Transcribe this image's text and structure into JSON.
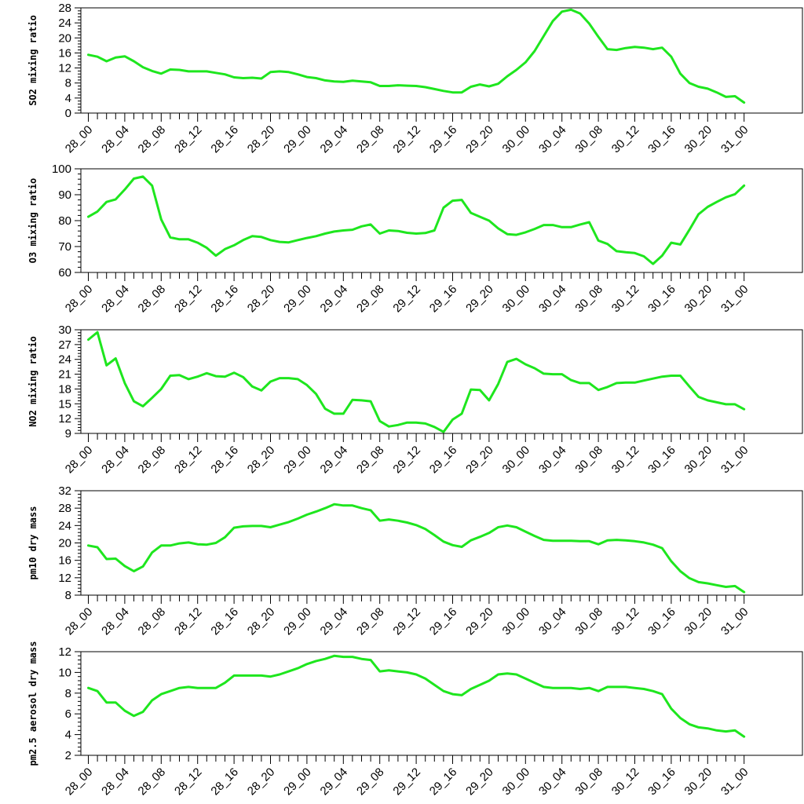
{
  "chart_data": [
    {
      "type": "line",
      "ylabel": "SO2 mixing ratio",
      "ylim": [
        0,
        28
      ],
      "yticks": [
        0,
        4,
        8,
        12,
        16,
        20,
        24,
        28
      ],
      "x_tick_labels": [
        "28_00",
        "28_04",
        "28_08",
        "28_12",
        "28_16",
        "28_20",
        "29_00",
        "29_04",
        "29_08",
        "29_12",
        "29_16",
        "29_20",
        "30_00",
        "30_04",
        "30_08",
        "30_12",
        "30_16",
        "30_20",
        "31_00"
      ],
      "series": [
        {
          "color": "#1ee61e",
          "values": [
            15.5,
            15.0,
            13.8,
            14.8,
            15.1,
            13.8,
            12.2,
            11.2,
            10.5,
            11.6,
            11.5,
            11.1,
            11.1,
            11.1,
            10.7,
            10.3,
            9.5,
            9.3,
            9.4,
            9.2,
            10.9,
            11.1,
            10.9,
            10.3,
            9.6,
            9.3,
            8.7,
            8.4,
            8.3,
            8.6,
            8.4,
            8.2,
            7.2,
            7.2,
            7.4,
            7.3,
            7.2,
            6.9,
            6.4,
            5.9,
            5.5,
            5.5,
            7.0,
            7.6,
            7.1,
            7.8,
            9.8,
            11.5,
            13.5,
            16.5,
            20.5,
            24.5,
            27.0,
            27.5,
            26.5,
            23.8,
            20.3,
            17.0,
            16.8,
            17.3,
            17.6,
            17.4,
            17.0,
            17.4,
            15.0,
            10.5,
            8.0,
            7.0,
            6.5,
            5.5,
            4.3,
            4.5,
            2.8
          ]
        }
      ]
    },
    {
      "type": "line",
      "ylabel": "O3 mixing ratio",
      "ylim": [
        60,
        100
      ],
      "yticks": [
        60,
        70,
        80,
        90,
        100
      ],
      "x_tick_labels": [
        "28_00",
        "28_04",
        "28_08",
        "28_12",
        "28_16",
        "28_20",
        "29_00",
        "29_04",
        "29_08",
        "29_12",
        "29_16",
        "29_20",
        "30_00",
        "30_04",
        "30_08",
        "30_12",
        "30_16",
        "30_20",
        "31_00"
      ],
      "series": [
        {
          "color": "#1ee61e",
          "values": [
            81.5,
            83.5,
            87.2,
            88.2,
            92,
            96.2,
            97,
            93.5,
            80.5,
            73.5,
            72.8,
            72.8,
            71.5,
            69.5,
            66.5,
            69,
            70.5,
            72.5,
            74.0,
            73.7,
            72.5,
            71.8,
            71.6,
            72.5,
            73.3,
            74.0,
            75.0,
            75.8,
            76.2,
            76.5,
            77.8,
            78.5,
            75.0,
            76.2,
            76.0,
            75.3,
            75.0,
            75.2,
            76.2,
            85,
            87.7,
            88,
            83,
            81.5,
            80,
            77.0,
            74.8,
            74.5,
            75.5,
            76.8,
            78.3,
            78.3,
            77.5,
            77.5,
            78.5,
            79.4,
            72.3,
            71,
            68.2,
            67.8,
            67.5,
            66.2,
            63.3,
            66.5,
            71.5,
            70.8,
            76.5,
            82.5,
            85.3,
            87.2,
            89,
            90.2,
            93.5
          ]
        }
      ]
    },
    {
      "type": "line",
      "ylabel": "NO2 mixing ratio",
      "ylim": [
        9,
        30
      ],
      "yticks": [
        9,
        12,
        15,
        18,
        21,
        24,
        27,
        30
      ],
      "x_tick_labels": [
        "28_00",
        "28_04",
        "28_08",
        "28_12",
        "28_16",
        "28_20",
        "29_00",
        "29_04",
        "29_08",
        "29_12",
        "29_16",
        "29_20",
        "30_00",
        "30_04",
        "30_08",
        "30_12",
        "30_16",
        "30_20",
        "31_00"
      ],
      "series": [
        {
          "color": "#1ee61e",
          "values": [
            28,
            29.5,
            22.8,
            24.2,
            19.2,
            15.5,
            14.5,
            16.2,
            18,
            20.7,
            20.8,
            20.0,
            20.5,
            21.2,
            20.6,
            20.5,
            21.3,
            20.4,
            18.5,
            17.7,
            19.5,
            20.2,
            20.2,
            20.0,
            18.8,
            17.0,
            14.0,
            13.0,
            13.0,
            15.8,
            15.7,
            15.5,
            11.5,
            10.4,
            10.7,
            11.2,
            11.2,
            11.0,
            10.3,
            9.3,
            11.8,
            13.0,
            17.9,
            17.8,
            15.7,
            19.0,
            23.5,
            24.1,
            23.0,
            22.2,
            21.1,
            21.0,
            21.0,
            19.8,
            19.2,
            19.2,
            17.8,
            18.4,
            19.2,
            19.3,
            19.3,
            19.7,
            20.1,
            20.5,
            20.7,
            20.7,
            18.5,
            16.4,
            15.7,
            15.3,
            14.9,
            14.9,
            13.9
          ]
        }
      ]
    },
    {
      "type": "line",
      "ylabel": "pm10 dry mass",
      "ylim": [
        8,
        32
      ],
      "yticks": [
        8,
        12,
        16,
        20,
        24,
        28,
        32
      ],
      "x_tick_labels": [
        "28_00",
        "28_04",
        "28_08",
        "28_12",
        "28_16",
        "28_20",
        "29_00",
        "29_04",
        "29_08",
        "29_12",
        "29_16",
        "29_20",
        "30_00",
        "30_04",
        "30_08",
        "30_12",
        "30_16",
        "30_20",
        "31_00"
      ],
      "series": [
        {
          "color": "#1ee61e",
          "values": [
            19.4,
            19.0,
            16.3,
            16.4,
            14.7,
            13.5,
            14.6,
            17.8,
            19.4,
            19.4,
            19.9,
            20.1,
            19.7,
            19.6,
            20.0,
            21.3,
            23.5,
            23.8,
            23.9,
            23.9,
            23.6,
            24.2,
            24.8,
            25.6,
            26.5,
            27.2,
            28.0,
            28.9,
            28.6,
            28.6,
            28.0,
            27.5,
            25.1,
            25.4,
            25.1,
            24.7,
            24.1,
            23.2,
            21.8,
            20.3,
            19.5,
            19.1,
            20.6,
            21.4,
            22.3,
            23.6,
            24.0,
            23.6,
            22.6,
            21.6,
            20.7,
            20.5,
            20.5,
            20.5,
            20.4,
            20.4,
            19.7,
            20.6,
            20.7,
            20.6,
            20.4,
            20.1,
            19.6,
            18.8,
            15.8,
            13.5,
            11.9,
            11.0,
            10.7,
            10.3,
            9.9,
            10.1,
            8.7
          ]
        }
      ]
    },
    {
      "type": "line",
      "ylabel": "pm2.5 aerosol dry mass",
      "ylim": [
        2,
        12
      ],
      "yticks": [
        2,
        4,
        6,
        8,
        10,
        12
      ],
      "x_tick_labels": [
        "28_00",
        "28_04",
        "28_08",
        "28_12",
        "28_16",
        "28_20",
        "29_00",
        "29_04",
        "29_08",
        "29_12",
        "29_16",
        "29_20",
        "30_00",
        "30_04",
        "30_08",
        "30_12",
        "30_16",
        "30_20",
        "31_00"
      ],
      "series": [
        {
          "color": "#1ee61e",
          "values": [
            8.5,
            8.2,
            7.1,
            7.1,
            6.3,
            5.8,
            6.2,
            7.3,
            7.9,
            8.2,
            8.5,
            8.6,
            8.5,
            8.5,
            8.5,
            9.0,
            9.7,
            9.7,
            9.7,
            9.7,
            9.6,
            9.8,
            10.1,
            10.4,
            10.8,
            11.1,
            11.3,
            11.6,
            11.5,
            11.5,
            11.3,
            11.2,
            10.1,
            10.2,
            10.1,
            10.0,
            9.8,
            9.4,
            8.8,
            8.2,
            7.9,
            7.8,
            8.4,
            8.8,
            9.2,
            9.8,
            9.9,
            9.8,
            9.4,
            9.0,
            8.6,
            8.5,
            8.5,
            8.5,
            8.4,
            8.5,
            8.2,
            8.6,
            8.6,
            8.6,
            8.5,
            8.4,
            8.2,
            7.9,
            6.5,
            5.6,
            5.0,
            4.7,
            4.6,
            4.4,
            4.3,
            4.4,
            3.8
          ]
        }
      ]
    }
  ]
}
